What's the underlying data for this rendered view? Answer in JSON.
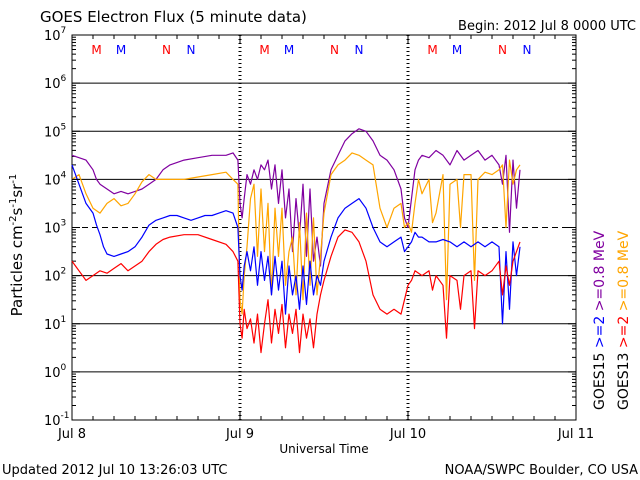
{
  "chart_data": {
    "type": "line",
    "title": "GOES Electron Flux (5 minute data)",
    "begin_label": "Begin: 2012 Jul 8 0000 UTC",
    "xlabel": "Universal Time",
    "ylabel_text": "Particles cm",
    "ylabel_sup1": "-2",
    "ylabel_mid1": "s",
    "ylabel_sup2": "-1",
    "ylabel_mid2": "sr",
    "ylabel_sup3": "-1",
    "footer_left": "Updated 2012 Jul 10 13:26:03 UTC",
    "footer_right": "NOAA/SWPC Boulder, CO USA",
    "xlim_hours": [
      0,
      72
    ],
    "ylim_log10": [
      -1,
      7
    ],
    "x_ticks": [
      {
        "hour": 0,
        "label": "Jul 8"
      },
      {
        "hour": 24,
        "label": "Jul 9"
      },
      {
        "hour": 48,
        "label": "Jul 10"
      },
      {
        "hour": 72,
        "label": "Jul 11"
      }
    ],
    "y_ticks": [
      {
        "exp": 7,
        "base": "10",
        "sup": "7"
      },
      {
        "exp": 6,
        "base": "10",
        "sup": "6"
      },
      {
        "exp": 5,
        "base": "10",
        "sup": "5"
      },
      {
        "exp": 4,
        "base": "10",
        "sup": "4"
      },
      {
        "exp": 3,
        "base": "10",
        "sup": "3"
      },
      {
        "exp": 2,
        "base": "10",
        "sup": "2"
      },
      {
        "exp": 1,
        "base": "10",
        "sup": "1"
      },
      {
        "exp": 0,
        "base": "10",
        "sup": "0"
      },
      {
        "exp": -1,
        "base": "10",
        "sup": "-1"
      }
    ],
    "threshold_exp": 3,
    "eclipse_markers": [
      {
        "hour": 3.5,
        "label": "M",
        "satellite": "GOES13"
      },
      {
        "hour": 7.0,
        "label": "M",
        "satellite": "GOES15"
      },
      {
        "hour": 13.5,
        "label": "N",
        "satellite": "GOES13"
      },
      {
        "hour": 17.0,
        "label": "N",
        "satellite": "GOES15"
      },
      {
        "hour": 27.5,
        "label": "M",
        "satellite": "GOES13"
      },
      {
        "hour": 31.0,
        "label": "M",
        "satellite": "GOES15"
      },
      {
        "hour": 37.5,
        "label": "N",
        "satellite": "GOES13"
      },
      {
        "hour": 41.0,
        "label": "N",
        "satellite": "GOES15"
      },
      {
        "hour": 51.5,
        "label": "M",
        "satellite": "GOES13"
      },
      {
        "hour": 55.0,
        "label": "M",
        "satellite": "GOES15"
      },
      {
        "hour": 61.5,
        "label": "N",
        "satellite": "GOES13"
      },
      {
        "hour": 65.0,
        "label": "N",
        "satellite": "GOES15"
      }
    ],
    "legend": [
      {
        "satellite": "GOES15",
        "items": [
          {
            "text": ">=2",
            "color": "#0000ff"
          },
          {
            "text": ">=0.8 MeV",
            "color": "#8000a0"
          }
        ]
      },
      {
        "satellite": "GOES13",
        "items": [
          {
            "text": ">=2",
            "color": "#ff0000"
          },
          {
            "text": ">=0.8 MeV",
            "color": "#ffa500"
          }
        ]
      }
    ],
    "series": [
      {
        "name": "GOES15 >=0.8 MeV",
        "color": "#8000a0",
        "x": [
          0,
          1,
          2,
          3,
          3.5,
          4,
          5,
          6,
          7,
          8,
          9,
          10,
          11,
          12,
          13,
          14,
          16,
          18,
          20,
          22,
          23,
          23.7,
          24,
          24.3,
          24.6,
          25,
          25.5,
          26,
          26.5,
          27,
          27.5,
          28,
          28.5,
          29,
          29.5,
          30,
          30.5,
          31,
          31.5,
          32,
          32.5,
          33,
          33.5,
          34,
          34.5,
          35,
          35.5,
          36,
          37,
          38,
          39,
          40,
          41,
          42,
          43,
          44,
          45,
          46,
          47,
          47.5,
          48,
          48.5,
          49,
          49.5,
          50,
          51,
          52,
          53,
          54,
          55,
          56,
          57,
          58,
          59,
          60,
          61,
          61.5,
          62,
          62.5,
          63,
          63.5,
          64
        ],
        "y": [
          4.5,
          4.45,
          4.4,
          4.2,
          4.0,
          3.9,
          3.8,
          3.7,
          3.75,
          3.7,
          3.75,
          3.8,
          3.9,
          4.0,
          4.2,
          4.3,
          4.4,
          4.45,
          4.5,
          4.5,
          4.55,
          4.4,
          3.5,
          3.2,
          3.6,
          4.1,
          3.9,
          4.2,
          4.0,
          4.3,
          4.2,
          4.4,
          3.8,
          4.3,
          3.5,
          4.2,
          3.2,
          3.8,
          2.5,
          3.6,
          2.8,
          3.9,
          2.4,
          3.8,
          2.3,
          2.8,
          2.2,
          3.5,
          4.2,
          4.5,
          4.8,
          4.95,
          5.05,
          5.0,
          4.8,
          4.5,
          4.4,
          4.2,
          3.8,
          3.2,
          3.0,
          3.6,
          4.2,
          4.4,
          4.5,
          4.45,
          4.6,
          4.5,
          4.3,
          4.6,
          4.4,
          4.5,
          4.6,
          4.4,
          4.5,
          4.3,
          3.9,
          4.5,
          2.9,
          4.4,
          3.4,
          4.2
        ]
      },
      {
        "name": "GOES13 >=0.8 MeV",
        "color": "#ffa500",
        "x": [
          0,
          1,
          2,
          3,
          4,
          5,
          6,
          7,
          8,
          9,
          10,
          11,
          12,
          13,
          14,
          16,
          18,
          20,
          22,
          23,
          23.7,
          24,
          24.3,
          24.6,
          25,
          25.5,
          26,
          26.5,
          27,
          27.5,
          28,
          28.5,
          29,
          29.5,
          30,
          30.5,
          31,
          31.5,
          32,
          32.5,
          33,
          33.5,
          34,
          34.5,
          35,
          35.5,
          36,
          37,
          38,
          39,
          40,
          41,
          42,
          43,
          44,
          45,
          46,
          47,
          47.5,
          48,
          48.5,
          49,
          49.5,
          50,
          51,
          51.5,
          52,
          53,
          53.5,
          54,
          55,
          55.5,
          56,
          57,
          57.5,
          58,
          59,
          60,
          61,
          61.5,
          62,
          62.5,
          63,
          63.5,
          64
        ],
        "y": [
          4.0,
          4.1,
          3.7,
          3.4,
          3.3,
          3.5,
          3.6,
          3.45,
          3.5,
          3.7,
          3.95,
          4.1,
          4.0,
          4.0,
          4.0,
          4.0,
          4.05,
          4.1,
          4.15,
          4.0,
          3.9,
          1.5,
          1.2,
          2.0,
          2.6,
          3.6,
          3.9,
          2.4,
          3.8,
          2.5,
          3.5,
          1.6,
          3.4,
          2.4,
          3.4,
          1.8,
          2.5,
          2.8,
          1.6,
          3.1,
          1.5,
          3.3,
          1.8,
          3.2,
          1.6,
          2.4,
          3.3,
          4.1,
          4.3,
          4.4,
          4.55,
          4.5,
          4.4,
          4.3,
          3.4,
          3.0,
          3.4,
          3.5,
          3.0,
          3.1,
          2.9,
          3.5,
          4.0,
          3.7,
          4.0,
          3.1,
          3.3,
          4.1,
          1.5,
          3.9,
          4.0,
          3.0,
          4.1,
          4.1,
          1.9,
          4.0,
          4.15,
          4.1,
          4.2,
          4.3,
          3.0,
          4.4,
          3.9,
          4.2,
          4.3
        ]
      },
      {
        "name": "GOES15 >=2 MeV",
        "color": "#0000ff",
        "x": [
          0,
          0.5,
          1,
          2,
          3,
          3.5,
          4,
          4.5,
          5,
          6,
          7,
          8,
          9,
          10,
          11,
          12,
          13,
          14,
          15,
          16,
          17,
          18,
          19,
          20,
          21,
          22,
          23,
          23.7,
          24,
          24.3,
          24.6,
          25,
          25.5,
          26,
          26.5,
          27,
          27.5,
          28,
          28.5,
          29,
          29.5,
          30,
          30.5,
          31,
          31.5,
          32,
          32.5,
          33,
          33.5,
          34,
          34.5,
          35,
          35.5,
          36,
          37,
          38,
          39,
          40,
          41,
          42,
          43,
          44,
          45,
          46,
          47,
          47.5,
          48,
          48.5,
          49,
          49.5,
          50,
          51,
          52,
          53,
          54,
          55,
          56,
          57,
          58,
          59,
          60,
          61,
          61.5,
          62,
          62.5,
          63,
          63.5,
          64
        ],
        "y": [
          4.3,
          4.1,
          3.9,
          3.5,
          3.3,
          3.05,
          2.85,
          2.6,
          2.45,
          2.4,
          2.45,
          2.5,
          2.6,
          2.8,
          3.05,
          3.15,
          3.2,
          3.25,
          3.25,
          3.2,
          3.15,
          3.2,
          3.25,
          3.25,
          3.3,
          3.35,
          3.3,
          3.0,
          2.0,
          1.7,
          2.2,
          2.5,
          2.1,
          2.6,
          1.8,
          2.5,
          1.9,
          2.4,
          1.6,
          2.4,
          1.7,
          2.3,
          1.2,
          2.2,
          1.6,
          2.0,
          1.3,
          2.2,
          1.4,
          2.3,
          1.6,
          2.0,
          1.8,
          2.3,
          2.8,
          3.2,
          3.4,
          3.5,
          3.6,
          3.4,
          3.0,
          2.7,
          2.6,
          2.7,
          2.8,
          2.5,
          2.6,
          2.7,
          2.9,
          2.8,
          2.8,
          2.7,
          2.7,
          2.75,
          2.7,
          2.6,
          2.7,
          2.6,
          2.7,
          2.6,
          2.7,
          2.6,
          1.0,
          2.5,
          1.3,
          2.7,
          2.0,
          2.6
        ]
      },
      {
        "name": "GOES13 >=2 MeV",
        "color": "#ff0000",
        "x": [
          0,
          0.5,
          1,
          2,
          3,
          4,
          5,
          6,
          7,
          8,
          9,
          10,
          11,
          12,
          13,
          14,
          16,
          18,
          20,
          22,
          23,
          23.7,
          24,
          24.3,
          24.6,
          25,
          25.5,
          26,
          26.5,
          27,
          27.5,
          28,
          28.5,
          29,
          29.5,
          30,
          30.5,
          31,
          31.5,
          32,
          32.5,
          33,
          33.5,
          34,
          34.5,
          35,
          35.5,
          36,
          37,
          38,
          39,
          40,
          41,
          42,
          43,
          44,
          45,
          46,
          47,
          47.5,
          48,
          48.5,
          49,
          50,
          51,
          51.5,
          52,
          53,
          53.5,
          54,
          55,
          55.5,
          56,
          57,
          57.5,
          58,
          59,
          60,
          61,
          61.5,
          62,
          62.5,
          63,
          63.5,
          64
        ],
        "y": [
          2.3,
          2.2,
          2.1,
          1.9,
          2.0,
          2.1,
          2.05,
          2.15,
          2.25,
          2.1,
          2.2,
          2.3,
          2.5,
          2.65,
          2.75,
          2.8,
          2.85,
          2.85,
          2.75,
          2.65,
          2.5,
          2.3,
          1.0,
          0.7,
          1.3,
          0.9,
          1.1,
          0.6,
          1.2,
          0.4,
          1.0,
          1.5,
          0.6,
          1.3,
          0.8,
          1.4,
          0.5,
          1.2,
          0.8,
          1.3,
          0.4,
          1.2,
          0.7,
          1.1,
          0.5,
          1.2,
          1.6,
          1.9,
          2.4,
          2.8,
          2.95,
          2.9,
          2.7,
          2.3,
          1.6,
          1.3,
          1.2,
          1.3,
          1.2,
          1.5,
          1.8,
          1.9,
          2.1,
          2.0,
          2.1,
          1.7,
          2.0,
          1.8,
          0.7,
          2.0,
          1.9,
          1.3,
          2.0,
          2.1,
          0.9,
          2.1,
          2.0,
          2.1,
          2.3,
          1.6,
          2.2,
          1.8,
          2.3,
          2.5,
          2.7
        ]
      }
    ]
  }
}
